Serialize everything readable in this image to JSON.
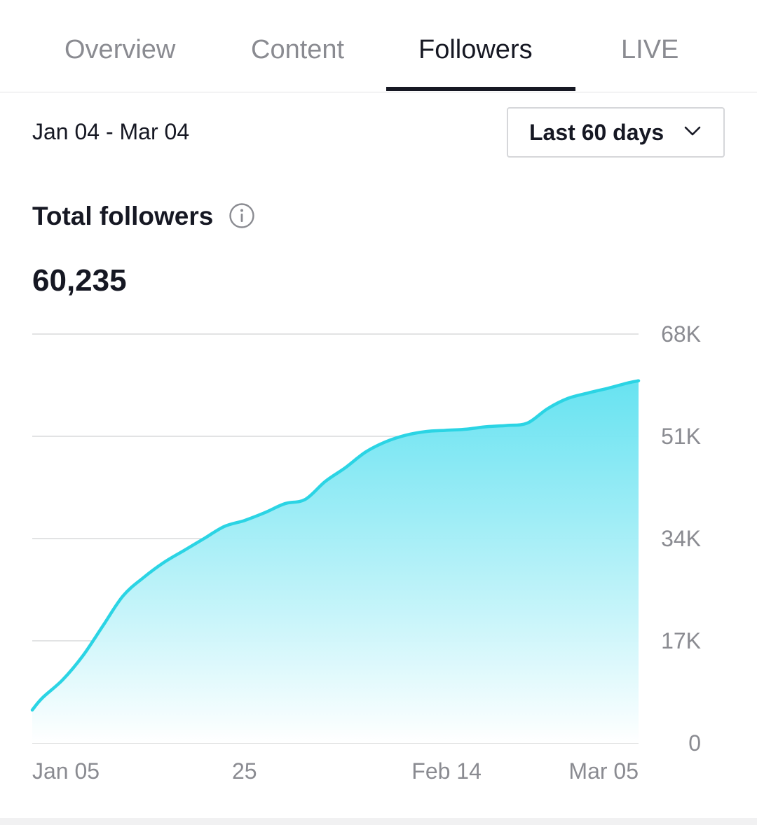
{
  "tabs": [
    {
      "label": "Overview",
      "active": false
    },
    {
      "label": "Content",
      "active": false
    },
    {
      "label": "Followers",
      "active": true
    },
    {
      "label": "LIVE",
      "active": false
    }
  ],
  "date_range": "Jan 04 - Mar 04",
  "range_select": {
    "label": "Last 60 days",
    "icon": "chevron-down-icon"
  },
  "metric": {
    "title": "Total followers",
    "info_icon": "info-icon",
    "value": "60,235"
  },
  "colors": {
    "accent": "#2bd4e4",
    "fill_top": "#5fe1f0",
    "text": "#161823",
    "muted": "#8a8b91"
  },
  "chart_data": {
    "type": "area",
    "title": "",
    "xlabel": "",
    "ylabel": "",
    "x_ticks": [
      "Jan 05",
      "25",
      "Feb 14",
      "Mar 05"
    ],
    "y_ticks": [
      "68K",
      "51K",
      "34K",
      "17K",
      "0"
    ],
    "ylim": [
      0,
      68000
    ],
    "grid": true,
    "x": [
      "Jan 04",
      "Jan 05",
      "Jan 07",
      "Jan 09",
      "Jan 11",
      "Jan 13",
      "Jan 15",
      "Jan 17",
      "Jan 19",
      "Jan 21",
      "Jan 23",
      "Jan 25",
      "Jan 27",
      "Jan 29",
      "Jan 31",
      "Feb 02",
      "Feb 04",
      "Feb 06",
      "Feb 08",
      "Feb 10",
      "Feb 12",
      "Feb 14",
      "Feb 16",
      "Feb 18",
      "Feb 20",
      "Feb 22",
      "Feb 24",
      "Feb 26",
      "Feb 28",
      "Mar 02",
      "Mar 04",
      "Mar 05"
    ],
    "series": [
      {
        "values": [
          5500,
          7500,
          10500,
          14500,
          19500,
          24500,
          27500,
          30000,
          32000,
          34000,
          36000,
          37000,
          38300,
          39800,
          40500,
          43500,
          45800,
          48400,
          50100,
          51200,
          51800,
          52000,
          52200,
          52600,
          52800,
          53200,
          55600,
          57300,
          58200,
          59000,
          59900,
          60235
        ]
      }
    ]
  }
}
